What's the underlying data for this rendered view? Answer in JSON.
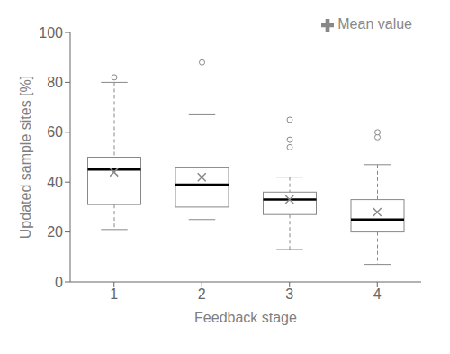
{
  "chart_data": {
    "type": "box",
    "xlabel": "Feedback stage",
    "ylabel": "Updated sample sites [%]",
    "categories": [
      "1",
      "2",
      "3",
      "4"
    ],
    "boxes": [
      {
        "whislo": 21,
        "q1": 31,
        "med": 45,
        "q3": 50,
        "whishi": 80,
        "fliers": [
          82
        ]
      },
      {
        "whislo": 25,
        "q1": 30,
        "med": 39,
        "q3": 46,
        "whishi": 67,
        "fliers": [
          88
        ]
      },
      {
        "whislo": 13,
        "q1": 27,
        "med": 33,
        "q3": 36,
        "whishi": 42,
        "fliers": [
          54,
          57,
          65
        ]
      },
      {
        "whislo": 7,
        "q1": 20,
        "med": 25,
        "q3": 33,
        "whishi": 47,
        "fliers": [
          58,
          60
        ]
      }
    ],
    "color": "#888888",
    "series": [
      {
        "name": "Mean value",
        "color": "#888888",
        "marker": "x",
        "values": [
          44,
          42,
          33,
          28
        ]
      }
    ],
    "ylim": [
      0,
      100
    ],
    "yticks": [
      0,
      20,
      40,
      60,
      80,
      100
    ],
    "grid": false,
    "legend": "upper right"
  }
}
